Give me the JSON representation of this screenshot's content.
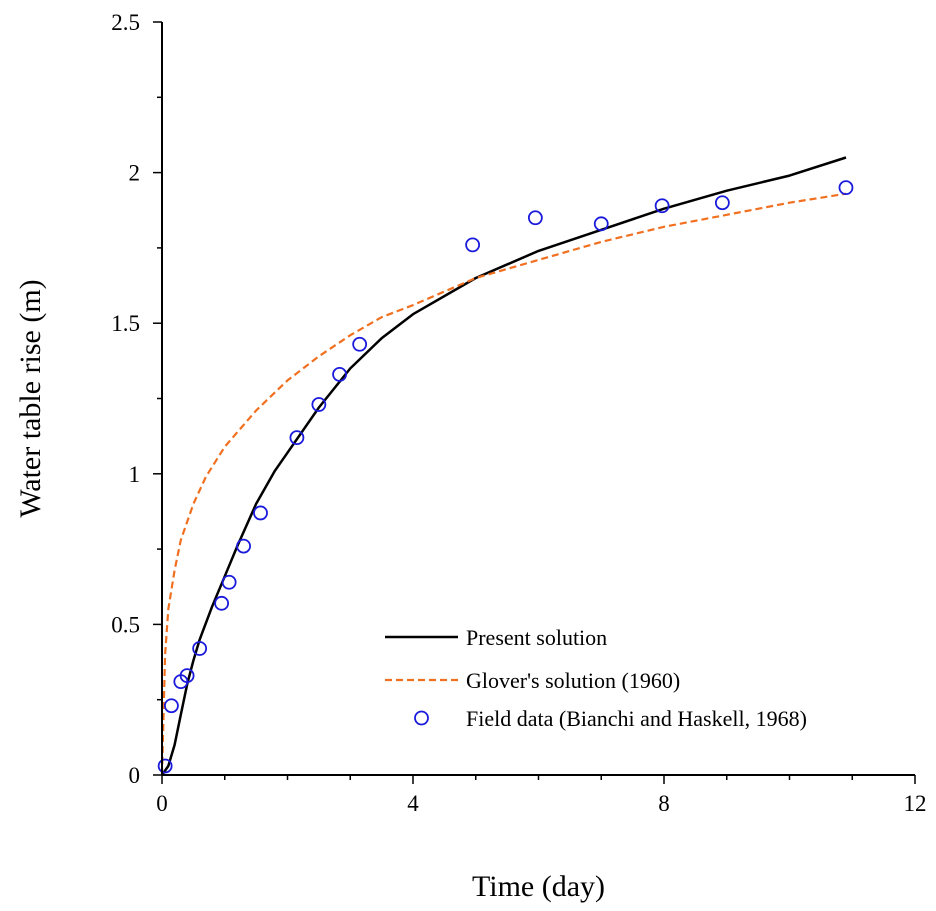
{
  "chart_data": {
    "type": "line",
    "title": "",
    "xlabel": "Time (day)",
    "ylabel": "Water table rise (m)",
    "xlim": [
      0,
      12
    ],
    "ylim": [
      0,
      2.5
    ],
    "x_ticks": [
      "0",
      "4",
      "8",
      "12"
    ],
    "y_ticks": [
      "0",
      "0.5",
      "1",
      "1.5",
      "2",
      "2.5"
    ],
    "grid": false,
    "legend_position": "bottom-right",
    "series": [
      {
        "name": "Present solution",
        "style": "solid-line",
        "color": "#000000",
        "x": [
          0.0,
          0.1,
          0.2,
          0.3,
          0.4,
          0.5,
          0.6,
          0.8,
          1.0,
          1.2,
          1.5,
          1.8,
          2.0,
          2.5,
          3.0,
          3.5,
          4.0,
          5.0,
          6.0,
          7.0,
          8.0,
          9.0,
          10.0,
          10.9
        ],
        "y": [
          0.0,
          0.03,
          0.1,
          0.2,
          0.3,
          0.38,
          0.45,
          0.56,
          0.66,
          0.76,
          0.9,
          1.01,
          1.07,
          1.22,
          1.35,
          1.45,
          1.53,
          1.65,
          1.74,
          1.81,
          1.88,
          1.94,
          1.99,
          2.05
        ]
      },
      {
        "name": "Glover's solution (1960)",
        "style": "dashed-line",
        "color": "#f07020",
        "x": [
          0.0,
          0.05,
          0.1,
          0.2,
          0.3,
          0.5,
          0.7,
          1.0,
          1.5,
          2.0,
          2.5,
          3.0,
          3.5,
          4.0,
          5.0,
          6.0,
          7.0,
          8.0,
          9.0,
          10.0,
          10.9
        ],
        "y": [
          0.0,
          0.4,
          0.55,
          0.68,
          0.78,
          0.9,
          0.99,
          1.09,
          1.21,
          1.31,
          1.39,
          1.46,
          1.52,
          1.56,
          1.65,
          1.71,
          1.77,
          1.82,
          1.86,
          1.9,
          1.93
        ]
      },
      {
        "name": "Field data (Bianchi and Haskell, 1968)",
        "style": "open-circle-markers",
        "color": "#1a1adc",
        "x": [
          0.05,
          0.15,
          0.3,
          0.4,
          0.6,
          0.95,
          1.07,
          1.3,
          1.57,
          2.15,
          2.5,
          2.83,
          3.15,
          4.95,
          5.95,
          7.0,
          7.97,
          8.93,
          10.9
        ],
        "y": [
          0.03,
          0.23,
          0.31,
          0.33,
          0.42,
          0.57,
          0.64,
          0.76,
          0.87,
          1.12,
          1.23,
          1.33,
          1.43,
          1.76,
          1.85,
          1.83,
          1.89,
          1.9,
          1.95
        ]
      }
    ]
  }
}
